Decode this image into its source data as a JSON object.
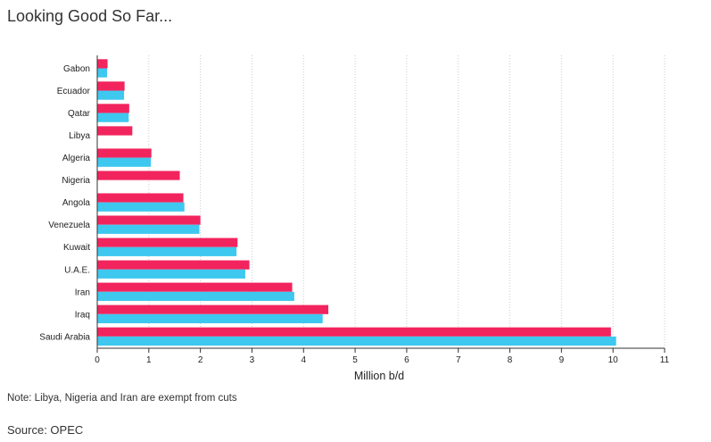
{
  "title": "Looking Good So Far...",
  "note": "Note: Libya, Nigeria and Iran are exempt from cuts",
  "source": "Source: OPEC",
  "colors": {
    "series_a": "#f2245e",
    "series_b": "#3ec8ef",
    "grid": "#cccccc",
    "axis": "#333333"
  },
  "chart_data": {
    "type": "bar",
    "orientation": "horizontal",
    "categories": [
      "Gabon",
      "Ecuador",
      "Qatar",
      "Libya",
      "Algeria",
      "Nigeria",
      "Angola",
      "Venezuela",
      "Kuwait",
      "U.A.E.",
      "Iran",
      "Iraq",
      "Saudi Arabia"
    ],
    "series": [
      {
        "color": "#f2245e",
        "values": [
          0.2,
          0.53,
          0.62,
          0.68,
          1.05,
          1.6,
          1.67,
          2.0,
          2.72,
          2.95,
          3.78,
          4.48,
          9.96
        ]
      },
      {
        "color": "#3ec8ef",
        "values": [
          0.19,
          0.52,
          0.61,
          null,
          1.04,
          null,
          1.69,
          1.98,
          2.7,
          2.87,
          3.82,
          4.37,
          10.06
        ]
      }
    ],
    "xlabel": "Million b/d",
    "ylabel": "",
    "xlim": [
      0,
      11
    ],
    "xticks": [
      "0",
      "1",
      "2",
      "3",
      "4",
      "5",
      "6",
      "7",
      "8",
      "9",
      "10",
      "11"
    ],
    "grid": "vertical dotted",
    "legend": "none"
  }
}
